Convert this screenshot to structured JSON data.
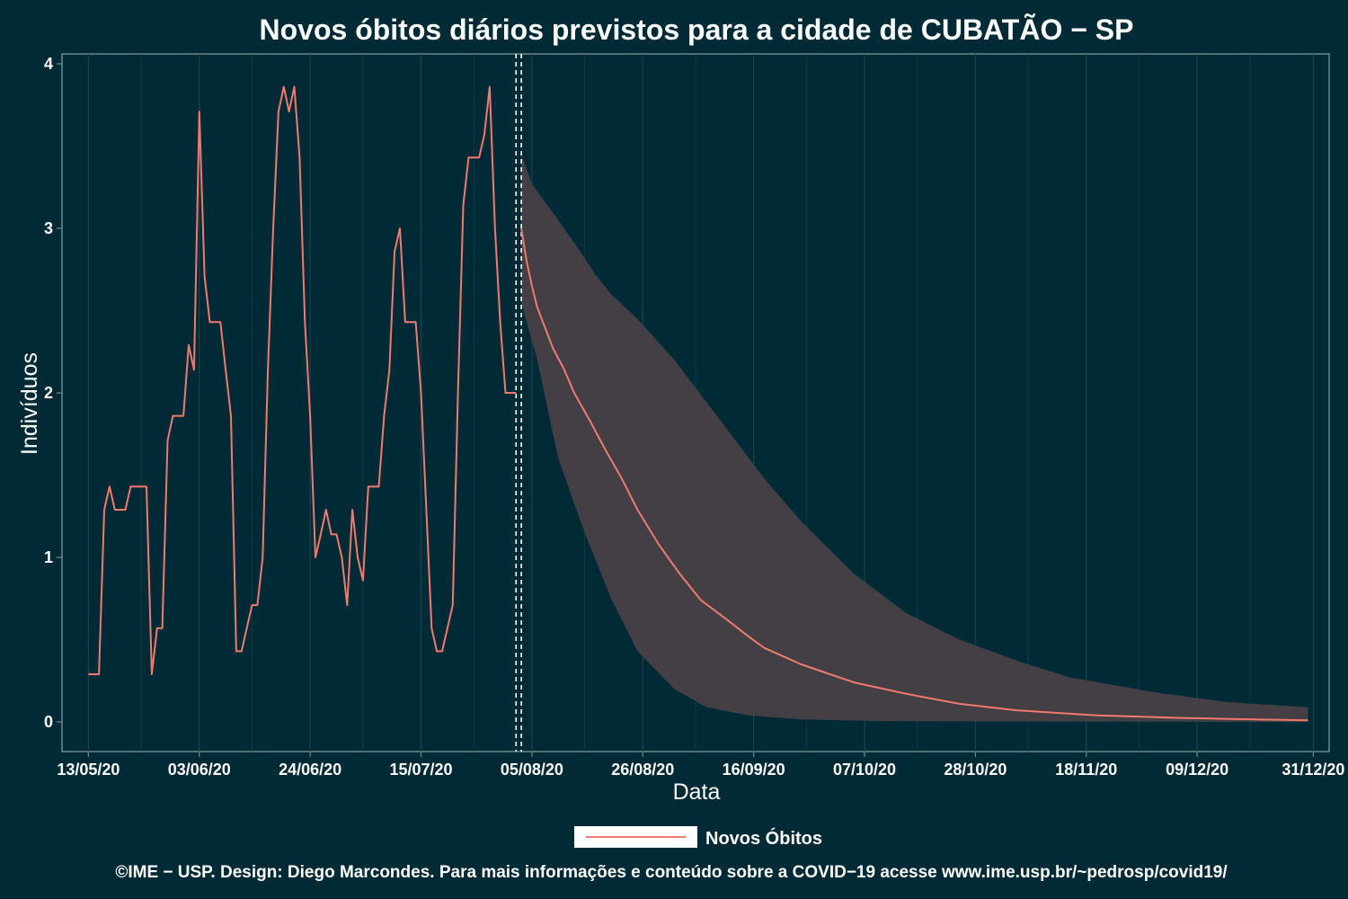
{
  "colors": {
    "background": "#002b36",
    "panel": "#002b36",
    "grid": "#1d3f48",
    "axis": "#6f8a8c",
    "line": "#f07a6e",
    "band": "#433f45",
    "vline": "#ffffff"
  },
  "chart_data": {
    "type": "line",
    "title": "Novos óbitos diários previstos para a cidade de CUBATÃO − SP",
    "xlabel": "Data",
    "ylabel": "Indivíduos",
    "x_ticks": [
      "13/05/20",
      "03/06/20",
      "24/06/20",
      "15/07/20",
      "05/08/20",
      "26/08/20",
      "16/09/20",
      "07/10/20",
      "28/10/20",
      "18/11/20",
      "09/12/20",
      "31/12/20"
    ],
    "y_ticks": [
      "0",
      "1",
      "2",
      "3",
      "4"
    ],
    "ylim": [
      -0.18,
      4.06
    ],
    "xlim": [
      "2020-05-08",
      "2021-01-03"
    ],
    "grid": true,
    "legend_position": "bottom",
    "vertical_lines": [
      "2020-08-02",
      "2020-08-03"
    ],
    "series": [
      {
        "name": "Novos Óbitos",
        "kind": "observed",
        "points": [
          [
            "2020-05-13",
            0.29
          ],
          [
            "2020-05-15",
            0.29
          ],
          [
            "2020-05-16",
            1.29
          ],
          [
            "2020-05-17",
            1.43
          ],
          [
            "2020-05-18",
            1.29
          ],
          [
            "2020-05-19",
            1.29
          ],
          [
            "2020-05-20",
            1.29
          ],
          [
            "2020-05-21",
            1.43
          ],
          [
            "2020-05-22",
            1.43
          ],
          [
            "2020-05-23",
            1.43
          ],
          [
            "2020-05-24",
            1.43
          ],
          [
            "2020-05-25",
            0.29
          ],
          [
            "2020-05-26",
            0.57
          ],
          [
            "2020-05-27",
            0.57
          ],
          [
            "2020-05-28",
            1.71
          ],
          [
            "2020-05-29",
            1.86
          ],
          [
            "2020-05-30",
            1.86
          ],
          [
            "2020-05-31",
            1.86
          ],
          [
            "2020-06-01",
            2.29
          ],
          [
            "2020-06-02",
            2.14
          ],
          [
            "2020-06-03",
            3.71
          ],
          [
            "2020-06-04",
            2.71
          ],
          [
            "2020-06-05",
            2.43
          ],
          [
            "2020-06-06",
            2.43
          ],
          [
            "2020-06-07",
            2.43
          ],
          [
            "2020-06-08",
            2.14
          ],
          [
            "2020-06-09",
            1.86
          ],
          [
            "2020-06-10",
            0.43
          ],
          [
            "2020-06-11",
            0.43
          ],
          [
            "2020-06-12",
            0.57
          ],
          [
            "2020-06-13",
            0.71
          ],
          [
            "2020-06-14",
            0.71
          ],
          [
            "2020-06-15",
            1.0
          ],
          [
            "2020-06-16",
            2.14
          ],
          [
            "2020-06-17",
            3.0
          ],
          [
            "2020-06-18",
            3.71
          ],
          [
            "2020-06-19",
            3.86
          ],
          [
            "2020-06-20",
            3.71
          ],
          [
            "2020-06-21",
            3.86
          ],
          [
            "2020-06-22",
            3.43
          ],
          [
            "2020-06-23",
            2.43
          ],
          [
            "2020-06-24",
            1.86
          ],
          [
            "2020-06-25",
            1.0
          ],
          [
            "2020-06-26",
            1.14
          ],
          [
            "2020-06-27",
            1.29
          ],
          [
            "2020-06-28",
            1.14
          ],
          [
            "2020-06-29",
            1.14
          ],
          [
            "2020-06-30",
            1.0
          ],
          [
            "2020-07-01",
            0.71
          ],
          [
            "2020-07-02",
            1.29
          ],
          [
            "2020-07-03",
            1.0
          ],
          [
            "2020-07-04",
            0.86
          ],
          [
            "2020-07-05",
            1.43
          ],
          [
            "2020-07-06",
            1.43
          ],
          [
            "2020-07-07",
            1.43
          ],
          [
            "2020-07-08",
            1.86
          ],
          [
            "2020-07-09",
            2.14
          ],
          [
            "2020-07-10",
            2.86
          ],
          [
            "2020-07-11",
            3.0
          ],
          [
            "2020-07-12",
            2.43
          ],
          [
            "2020-07-13",
            2.43
          ],
          [
            "2020-07-14",
            2.43
          ],
          [
            "2020-07-15",
            2.0
          ],
          [
            "2020-07-16",
            1.29
          ],
          [
            "2020-07-17",
            0.57
          ],
          [
            "2020-07-18",
            0.43
          ],
          [
            "2020-07-19",
            0.43
          ],
          [
            "2020-07-20",
            0.57
          ],
          [
            "2020-07-21",
            0.71
          ],
          [
            "2020-07-22",
            2.0
          ],
          [
            "2020-07-23",
            3.14
          ],
          [
            "2020-07-24",
            3.43
          ],
          [
            "2020-07-25",
            3.43
          ],
          [
            "2020-07-26",
            3.43
          ],
          [
            "2020-07-27",
            3.57
          ],
          [
            "2020-07-28",
            3.86
          ],
          [
            "2020-07-29",
            3.0
          ],
          [
            "2020-07-30",
            2.43
          ],
          [
            "2020-07-31",
            2.0
          ],
          [
            "2020-08-02",
            2.0
          ]
        ]
      },
      {
        "name": "Novos Óbitos",
        "kind": "predicted",
        "points": [
          [
            "2020-08-03",
            3.0
          ],
          [
            "2020-08-04",
            2.8
          ],
          [
            "2020-08-05",
            2.65
          ],
          [
            "2020-08-06",
            2.52
          ],
          [
            "2020-08-09",
            2.27
          ],
          [
            "2020-08-11",
            2.15
          ],
          [
            "2020-08-13",
            2.0
          ],
          [
            "2020-08-16",
            1.83
          ],
          [
            "2020-08-19",
            1.65
          ],
          [
            "2020-08-22",
            1.48
          ],
          [
            "2020-08-25",
            1.29
          ],
          [
            "2020-08-29",
            1.08
          ],
          [
            "2020-09-02",
            0.9
          ],
          [
            "2020-09-06",
            0.74
          ],
          [
            "2020-09-11",
            0.62
          ],
          [
            "2020-09-15",
            0.52
          ],
          [
            "2020-09-18",
            0.45
          ],
          [
            "2020-09-25",
            0.35
          ],
          [
            "2020-10-05",
            0.24
          ],
          [
            "2020-10-15",
            0.17
          ],
          [
            "2020-10-25",
            0.11
          ],
          [
            "2020-11-05",
            0.07
          ],
          [
            "2020-11-20",
            0.04
          ],
          [
            "2020-12-05",
            0.025
          ],
          [
            "2020-12-20",
            0.015
          ],
          [
            "2020-12-30",
            0.01
          ]
        ]
      }
    ],
    "interval": {
      "upper": [
        [
          "2020-08-03",
          3.45
        ],
        [
          "2020-08-05",
          3.27
        ],
        [
          "2020-08-10",
          3.05
        ],
        [
          "2020-08-15",
          2.82
        ],
        [
          "2020-08-17",
          2.72
        ],
        [
          "2020-08-20",
          2.6
        ],
        [
          "2020-08-25",
          2.45
        ],
        [
          "2020-09-01",
          2.2
        ],
        [
          "2020-09-10",
          1.82
        ],
        [
          "2020-09-18",
          1.48
        ],
        [
          "2020-09-25",
          1.22
        ],
        [
          "2020-10-05",
          0.9
        ],
        [
          "2020-10-15",
          0.66
        ],
        [
          "2020-10-25",
          0.5
        ],
        [
          "2020-11-05",
          0.37
        ],
        [
          "2020-11-15",
          0.27
        ],
        [
          "2020-12-01",
          0.18
        ],
        [
          "2020-12-15",
          0.12
        ],
        [
          "2020-12-30",
          0.09
        ]
      ],
      "lower": [
        [
          "2020-08-03",
          2.55
        ],
        [
          "2020-08-06",
          2.2
        ],
        [
          "2020-08-10",
          1.6
        ],
        [
          "2020-08-15",
          1.15
        ],
        [
          "2020-08-20",
          0.75
        ],
        [
          "2020-08-25",
          0.43
        ],
        [
          "2020-09-01",
          0.2
        ],
        [
          "2020-09-07",
          0.09
        ],
        [
          "2020-09-15",
          0.04
        ],
        [
          "2020-09-25",
          0.015
        ],
        [
          "2020-10-10",
          0.005
        ],
        [
          "2020-12-30",
          0.0
        ]
      ]
    }
  },
  "legend": {
    "label": "Novos Óbitos"
  },
  "caption": "©IME − USP. Design: Diego Marcondes. Para mais informações e conteúdo sobre a COVID−19 acesse www.ime.usp.br/~pedrosp/covid19/"
}
